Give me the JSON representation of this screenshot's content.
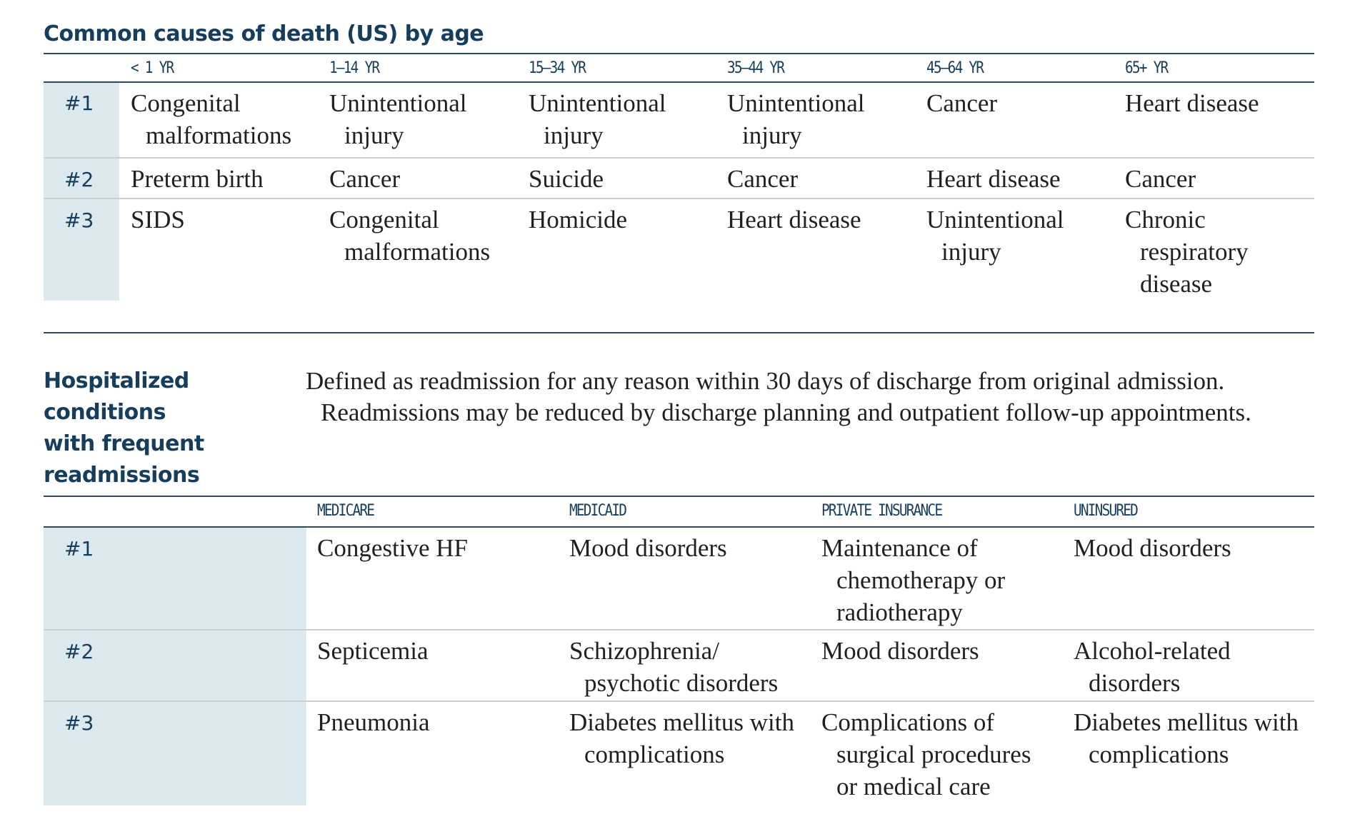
{
  "death_table": {
    "title": "Common causes of death (US) by age",
    "columns": [
      "< 1 YR",
      "1–14 YR",
      "15–34 YR",
      "35–44 YR",
      "45–64 YR",
      "65+ YR"
    ],
    "rows": [
      {
        "rank": "#1",
        "cells": [
          [
            "Congenital",
            "malformations"
          ],
          [
            "Unintentional",
            "injury"
          ],
          [
            "Unintentional",
            "injury"
          ],
          [
            "Unintentional",
            "injury"
          ],
          [
            "Cancer"
          ],
          [
            "Heart disease"
          ]
        ]
      },
      {
        "rank": "#2",
        "cells": [
          [
            "Preterm birth"
          ],
          [
            "Cancer"
          ],
          [
            "Suicide"
          ],
          [
            "Cancer"
          ],
          [
            "Heart disease"
          ],
          [
            "Cancer"
          ]
        ]
      },
      {
        "rank": "#3",
        "cells": [
          [
            "SIDS"
          ],
          [
            "Congenital",
            "malformations"
          ],
          [
            "Homicide"
          ],
          [
            "Heart disease"
          ],
          [
            "Unintentional",
            "injury"
          ],
          [
            "Chronic",
            "respiratory",
            "disease"
          ]
        ]
      }
    ]
  },
  "readmission_table": {
    "title_lines": [
      "Hospitalized",
      "conditions",
      "with frequent",
      "readmissions"
    ],
    "description_lines": [
      "Defined as readmission for any reason within 30 days of discharge from original admission.",
      "Readmissions may be reduced by discharge planning and outpatient follow-up appointments."
    ],
    "columns": [
      "MEDICARE",
      "MEDICAID",
      "PRIVATE INSURANCE",
      "UNINSURED"
    ],
    "rows": [
      {
        "rank": "#1",
        "cells": [
          [
            "Congestive HF"
          ],
          [
            "Mood disorders"
          ],
          [
            "Maintenance of",
            "chemotherapy or",
            "radiotherapy"
          ],
          [
            "Mood disorders"
          ]
        ]
      },
      {
        "rank": "#2",
        "cells": [
          [
            "Septicemia"
          ],
          [
            "Schizophrenia/",
            "psychotic disorders"
          ],
          [
            "Mood disorders"
          ],
          [
            "Alcohol-related",
            "disorders"
          ]
        ]
      },
      {
        "rank": "#3",
        "cells": [
          [
            "Pneumonia"
          ],
          [
            "Diabetes mellitus with",
            "complications"
          ],
          [
            "Complications of",
            "surgical procedures",
            "or medical care"
          ],
          [
            "Diabetes mellitus with",
            "complications"
          ]
        ]
      }
    ]
  },
  "colors": {
    "title": "#163e5c",
    "rank_cell_bg": "#dce9ee",
    "rule": "#2d4a5f",
    "row_rule": "#c9cfd3",
    "body_text": "#231f20"
  }
}
